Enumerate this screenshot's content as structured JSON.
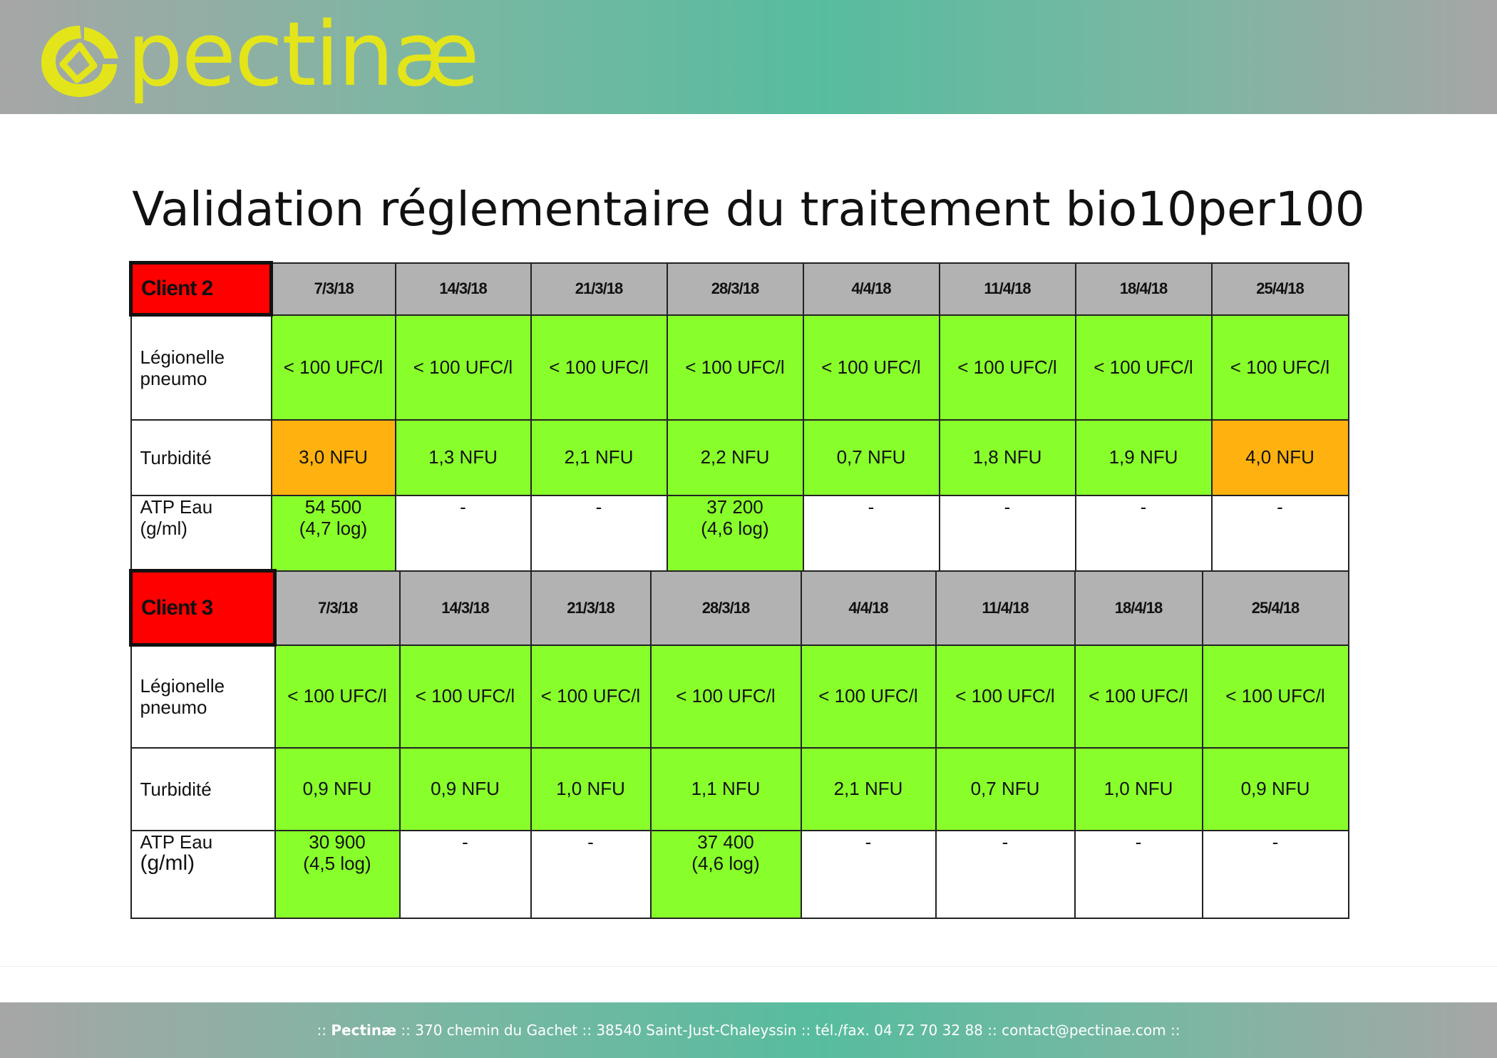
{
  "header": {
    "logo_text": "pectinæ",
    "logo_color": "#e3e51a"
  },
  "title": "Validation réglementaire du traitement bio10per100",
  "colors": {
    "client_header": "#ff0000",
    "date_header": "#b2b2b2",
    "ok": "#88ff2b",
    "warning": "#ffb20f"
  },
  "tables": [
    {
      "client": "Client 2",
      "dates": [
        "7/3/18",
        "14/3/18",
        "21/3/18",
        "28/3/18",
        "4/4/18",
        "11/4/18",
        "18/4/18",
        "25/4/18"
      ],
      "rows": [
        {
          "label": [
            "Légionelle",
            "pneumo"
          ],
          "cells": [
            "< 100 UFC/l",
            "< 100 UFC/l",
            "< 100 UFC/l",
            "< 100 UFC/l",
            "< 100 UFC/l",
            "< 100 UFC/l",
            "< 100 UFC/l",
            "< 100 UFC/l"
          ],
          "status": [
            "ok",
            "ok",
            "ok",
            "ok",
            "ok",
            "ok",
            "ok",
            "ok"
          ]
        },
        {
          "label": [
            "Turbidité"
          ],
          "cells": [
            "3,0 NFU",
            "1,3 NFU",
            "2,1 NFU",
            "2,2 NFU",
            "0,7 NFU",
            "1,8 NFU",
            "1,9 NFU",
            "4,0 NFU"
          ],
          "status": [
            "warning",
            "ok",
            "ok",
            "ok",
            "ok",
            "ok",
            "ok",
            "warning"
          ]
        },
        {
          "label": [
            "ATP Eau",
            "(g/ml)"
          ],
          "cells": [
            [
              "54 500",
              "(4,7 log)"
            ],
            [
              "-"
            ],
            [
              "-"
            ],
            [
              "37 200",
              "(4,6 log)"
            ],
            [
              "-"
            ],
            [
              "-"
            ],
            [
              "-"
            ],
            [
              "-"
            ]
          ],
          "status": [
            "ok",
            "none",
            "none",
            "ok",
            "none",
            "none",
            "none",
            "none"
          ]
        }
      ]
    },
    {
      "client": "Client 3",
      "dates": [
        "7/3/18",
        "14/3/18",
        "21/3/18",
        "28/3/18",
        "4/4/18",
        "11/4/18",
        "18/4/18",
        "25/4/18"
      ],
      "rows": [
        {
          "label": [
            "Légionelle",
            "pneumo"
          ],
          "cells": [
            "< 100 UFC/l",
            "< 100 UFC/l",
            "< 100 UFC/l",
            "< 100 UFC/l",
            "< 100 UFC/l",
            "< 100 UFC/l",
            "< 100 UFC/l",
            "< 100 UFC/l"
          ],
          "status": [
            "ok",
            "ok",
            "ok",
            "ok",
            "ok",
            "ok",
            "ok",
            "ok"
          ]
        },
        {
          "label": [
            "Turbidité"
          ],
          "cells": [
            "0,9 NFU",
            "0,9 NFU",
            "1,0 NFU",
            "1,1 NFU",
            "2,1 NFU",
            "0,7 NFU",
            "1,0 NFU",
            "0,9 NFU"
          ],
          "status": [
            "ok",
            "ok",
            "ok",
            "ok",
            "ok",
            "ok",
            "ok",
            "ok"
          ]
        },
        {
          "label": [
            "ATP Eau",
            "(g/ml)"
          ],
          "cells": [
            [
              "30 900",
              "(4,5 log)"
            ],
            [
              "-"
            ],
            [
              "-"
            ],
            [
              "37 400",
              "(4,6 log)"
            ],
            [
              "-"
            ],
            [
              "-"
            ],
            [
              "-"
            ],
            [
              "-"
            ]
          ],
          "status": [
            "ok",
            "none",
            "none",
            "ok",
            "none",
            "none",
            "none",
            "none"
          ]
        }
      ]
    }
  ],
  "footer": {
    "prefix": ":: ",
    "company": "Pectinæ",
    "rest": " :: 370 chemin du Gachet :: 38540 Saint-Just-Chaleyssin :: tél./fax. 04 72 70 32 88 :: contact@pectinae.com ::"
  }
}
